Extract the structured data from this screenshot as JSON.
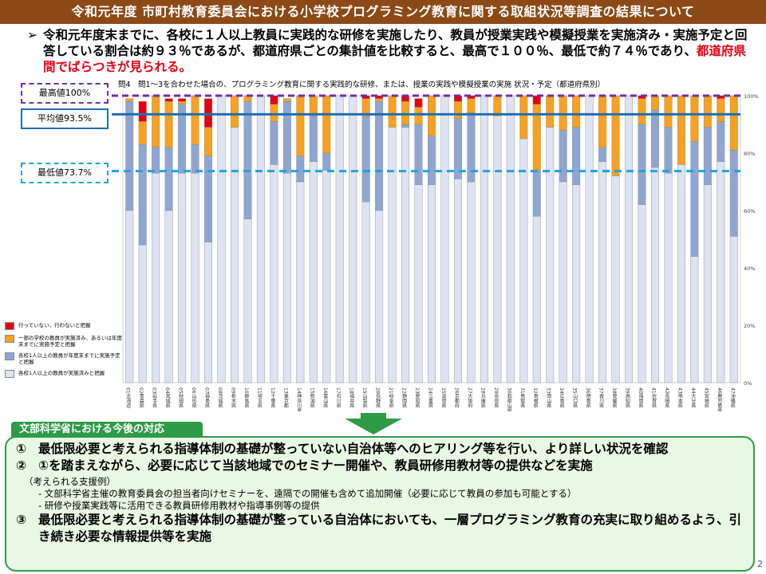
{
  "header": {
    "title": "令和元年度 市町村教育委員会における小学校プログラミング教育に関する取組状況等調査の結果について"
  },
  "summary": {
    "bullet": "➢",
    "text": "令和元年度末までに、各校に１人以上教員に実践的な研修を実施したり、教員が授業実践や模擬授業を実施済み・実施予定と回答している割合は約９３％であるが、都道府県ごとの集計値を比較すると、最高で１００％、最低で約７４％であり、",
    "highlight": "都道府県間でばらつきが見られる。"
  },
  "reference_lines": {
    "max_label": "最高値100%",
    "avg_label": "平均値93.5%",
    "min_label": "最低値73.7%",
    "max_value": 100,
    "avg_value": 93.5,
    "min_value": 73.7,
    "colors": {
      "max": "#7030a0",
      "avg": "#1f6fb2",
      "min": "#1fa2df"
    }
  },
  "chart_data": {
    "type": "bar",
    "stacked": true,
    "title": "問4　問1～3を合わせた場合の、プログラミング教育に関する実践的な研修、または、授業の実践や模擬授業の実施 状況・予定（都道府県別）",
    "ylim": [
      0,
      100
    ],
    "yticks": [
      "0%",
      "20%",
      "40%",
      "60%",
      "80%",
      "100%"
    ],
    "categories": [
      "01北海道",
      "02青森県",
      "03岩手県",
      "04宮城県",
      "05秋田県",
      "06山形県",
      "07福島県",
      "08茨城県",
      "09栃木県",
      "10群馬県",
      "11埼玉県",
      "12千葉県",
      "13東京都",
      "14神奈川県",
      "15新潟県",
      "16富山県",
      "17石川県",
      "18福井県",
      "19山梨県",
      "20長野県",
      "21岐阜県",
      "22静岡県",
      "23愛知県",
      "24三重県",
      "25滋賀県",
      "26京都府",
      "27大阪府",
      "28兵庫県",
      "29奈良県",
      "30和歌山県",
      "31鳥取県",
      "32島根県",
      "33岡山県",
      "34広島県",
      "35山口県",
      "36徳島県",
      "37香川県",
      "38愛媛県",
      "39高知県",
      "40福岡県",
      "41佐賀県",
      "42長崎県",
      "43熊本県",
      "44大分県",
      "45宮崎県",
      "46鹿児島県",
      "47沖縄県"
    ],
    "series": [
      {
        "name": "各校1人以上の教員が実施済みと把握",
        "color": "#dde3f0",
        "values": [
          60,
          48,
          73,
          60,
          73,
          73,
          49,
          100,
          89,
          57,
          100,
          76,
          73,
          70,
          77,
          74,
          100,
          100,
          63,
          60,
          89,
          89,
          69,
          69,
          100,
          71,
          70,
          100,
          93,
          100,
          85,
          58,
          89,
          70,
          69,
          100,
          77,
          72,
          100,
          62,
          75,
          73,
          76,
          44,
          69,
          77,
          51
        ]
      },
      {
        "name": "各校1人以上の教員が年度末までに実施予定と把握",
        "color": "#8ea6d1",
        "values": [
          38,
          35,
          9,
          22,
          24,
          10,
          30,
          0,
          0,
          41,
          0,
          15,
          25,
          9,
          16,
          6,
          0,
          0,
          30,
          38,
          0,
          1,
          21,
          17,
          0,
          21,
          24,
          0,
          0,
          0,
          0,
          16,
          0,
          18,
          20,
          0,
          5,
          0,
          0,
          28,
          20,
          16,
          0,
          40,
          20,
          14,
          30
        ]
      },
      {
        "name": "一部の学校の教員が実施済み、あるいは年度末までに実施予定と把握",
        "color": "#f6a11f",
        "values": [
          1,
          8,
          18,
          16,
          1,
          17,
          10,
          0,
          11,
          2,
          0,
          6,
          1,
          21,
          7,
          20,
          0,
          0,
          6,
          1,
          11,
          8,
          6,
          14,
          0,
          6,
          5,
          0,
          7,
          0,
          15,
          23,
          11,
          12,
          11,
          0,
          18,
          28,
          0,
          9,
          5,
          11,
          24,
          16,
          11,
          8,
          19
        ]
      },
      {
        "name": "行っていない、行わないと把握",
        "color": "#e60012",
        "values": [
          0,
          7,
          0,
          1,
          1,
          0,
          10,
          0,
          0,
          0,
          0,
          3,
          0,
          0,
          0,
          0,
          0,
          0,
          1,
          1,
          0,
          2,
          3,
          0,
          0,
          2,
          1,
          0,
          0,
          0,
          0,
          3,
          0,
          0,
          0,
          0,
          0,
          0,
          0,
          1,
          0,
          0,
          0,
          0,
          0,
          1,
          0
        ]
      }
    ]
  },
  "action_section": {
    "tab_label": "文部科学省における今後の対応",
    "item1_num": "①",
    "item1": "最低限必要と考えられる指導体制の基礎が整っていない自治体等へのヒアリング等を行い、より詳しい状況を確認",
    "item2_num": "②",
    "item2": "①を踏まえながら、必要に応じて当該地域でのセミナー開催や、教員研修用教材等の提供などを実施",
    "support_heading": "（考えられる支援例）",
    "support1": "- 文部科学省主催の教育委員会の担当者向けセミナーを、遠隔での開催も含めて追加開催（必要に応じて教員の参加も可能とする）",
    "support2": "- 研修や授業実践等に活用できる教員研修用教材や指導事例等の提供",
    "item3_num": "③",
    "item3": "最低限必要と考えられる指導体制の基礎が整っている自治体においても、一層プログラミング教育の充実に取り組めるよう、引き続き必要な情報提供等を実施"
  },
  "page_number": "2"
}
